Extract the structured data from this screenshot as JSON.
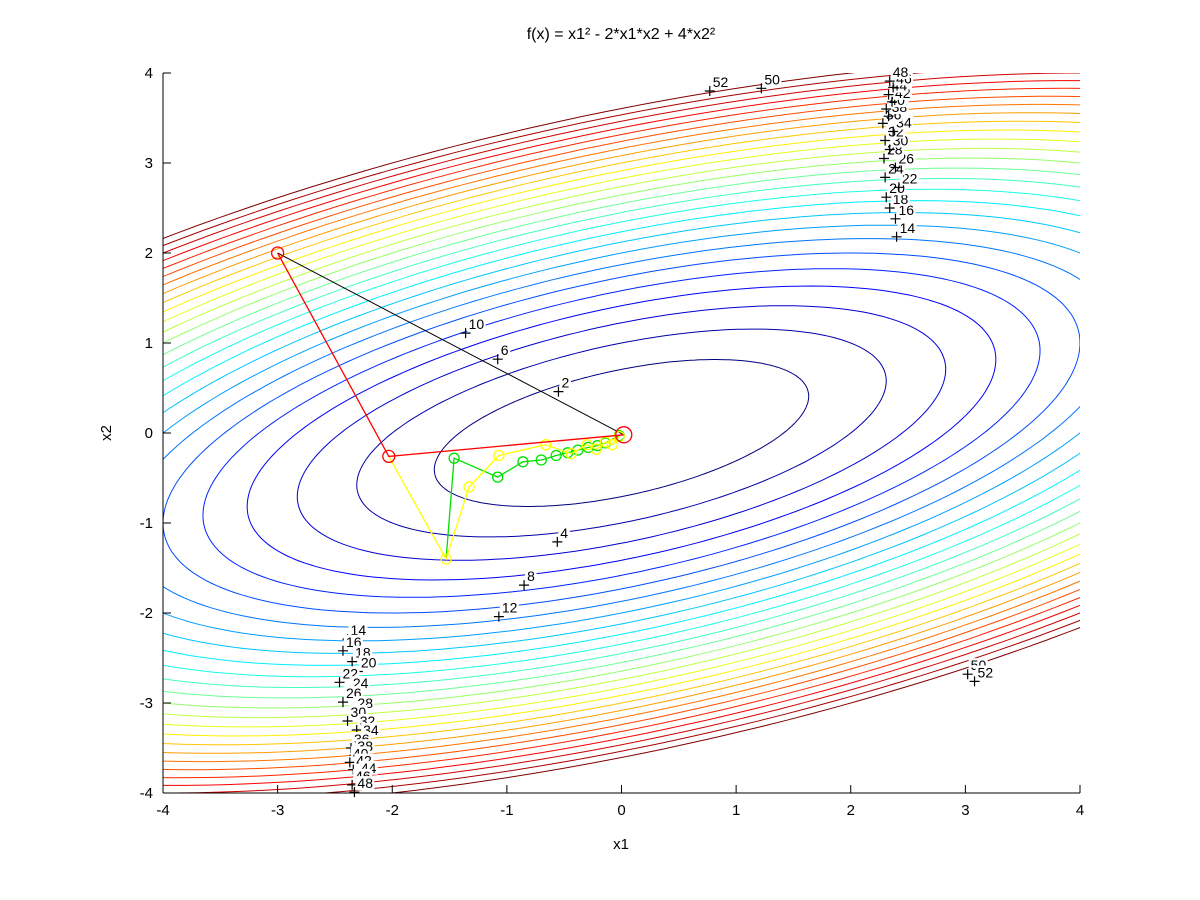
{
  "figure": {
    "title": "f(x) = x1² - 2*x1*x2 + 4*x2²",
    "xlabel": "x1",
    "ylabel": "x2",
    "background": "#ffffff"
  },
  "chart_data": {
    "type": "contour",
    "title": "f(x) = x1² - 2*x1*x2 + 4*x2²",
    "function": "f(x) = x1^2 - 2*x1*x2 + 4*x2^2",
    "quadratic_coefficients": {
      "a11": 1,
      "a12": -1,
      "a22": 4
    },
    "colormap": "jet",
    "grid": false,
    "xlim": [
      -4,
      4
    ],
    "ylim": [
      -4,
      4
    ],
    "xticks": [
      -4,
      -3,
      -2,
      -1,
      0,
      1,
      2,
      3,
      4
    ],
    "yticks": [
      -4,
      -3,
      -2,
      -1,
      0,
      1,
      2,
      3,
      4
    ],
    "levels": [
      2,
      4,
      6,
      8,
      10,
      12,
      14,
      16,
      18,
      20,
      22,
      24,
      26,
      28,
      30,
      32,
      34,
      36,
      38,
      40,
      42,
      44,
      46,
      48,
      50,
      52
    ],
    "minimum": [
      0,
      0
    ],
    "start_point": [
      -3,
      2
    ],
    "contour_labels": [
      {
        "level": 52,
        "x": 0.77,
        "y": 3.8
      },
      {
        "level": 50,
        "x": 1.22,
        "y": 3.83
      },
      {
        "level": 10,
        "x": -1.36,
        "y": 1.11
      },
      {
        "level": 6,
        "x": -1.08,
        "y": 0.82
      },
      {
        "level": 2,
        "x": -0.55,
        "y": 0.46
      },
      {
        "level": 4,
        "x": -0.56,
        "y": -1.21
      },
      {
        "level": 8,
        "x": -0.85,
        "y": -1.69
      },
      {
        "level": 12,
        "x": -1.07,
        "y": -2.04
      },
      {
        "level": 50,
        "x": 3.02,
        "y": -2.68
      },
      {
        "level": 52,
        "x": 3.08,
        "y": -2.76
      },
      {
        "level": 14,
        "x": 2.4,
        "y": 2.18
      },
      {
        "level": 16,
        "x": 2.39,
        "y": 2.38
      },
      {
        "level": 18,
        "x": 2.34,
        "y": 2.5
      },
      {
        "level": 20,
        "x": 2.31,
        "y": 2.62
      },
      {
        "level": 22,
        "x": 2.42,
        "y": 2.73
      },
      {
        "level": 24,
        "x": 2.3,
        "y": 2.84
      },
      {
        "level": 26,
        "x": 2.39,
        "y": 2.95
      },
      {
        "level": 28,
        "x": 2.29,
        "y": 3.05
      },
      {
        "level": 30,
        "x": 2.34,
        "y": 3.15
      },
      {
        "level": 32,
        "x": 2.3,
        "y": 3.25
      },
      {
        "level": 34,
        "x": 2.37,
        "y": 3.35
      },
      {
        "level": 36,
        "x": 2.28,
        "y": 3.44
      },
      {
        "level": 38,
        "x": 2.33,
        "y": 3.52
      },
      {
        "level": 40,
        "x": 2.31,
        "y": 3.6
      },
      {
        "level": 42,
        "x": 2.36,
        "y": 3.68
      },
      {
        "level": 44,
        "x": 2.33,
        "y": 3.76
      },
      {
        "level": 46,
        "x": 2.37,
        "y": 3.84
      },
      {
        "level": 48,
        "x": 2.34,
        "y": 3.91
      },
      {
        "level": 14,
        "x": -2.39,
        "y": -2.29
      },
      {
        "level": 16,
        "x": -2.43,
        "y": -2.42
      },
      {
        "level": 18,
        "x": -2.35,
        "y": -2.54
      },
      {
        "level": 20,
        "x": -2.3,
        "y": -2.65
      },
      {
        "level": 22,
        "x": -2.46,
        "y": -2.77
      },
      {
        "level": 24,
        "x": -2.37,
        "y": -2.88
      },
      {
        "level": 26,
        "x": -2.43,
        "y": -2.99
      },
      {
        "level": 28,
        "x": -2.33,
        "y": -3.1
      },
      {
        "level": 30,
        "x": -2.39,
        "y": -3.2
      },
      {
        "level": 32,
        "x": -2.31,
        "y": -3.3
      },
      {
        "level": 34,
        "x": -2.28,
        "y": -3.4
      },
      {
        "level": 36,
        "x": -2.36,
        "y": -3.5
      },
      {
        "level": 38,
        "x": -2.33,
        "y": -3.58
      },
      {
        "level": 40,
        "x": -2.37,
        "y": -3.66
      },
      {
        "level": 42,
        "x": -2.34,
        "y": -3.74
      },
      {
        "level": 44,
        "x": -2.3,
        "y": -3.82
      },
      {
        "level": 46,
        "x": -2.35,
        "y": -3.91
      },
      {
        "level": 48,
        "x": -2.33,
        "y": -3.99
      }
    ],
    "paths": [
      {
        "name": "newton-step-line",
        "color": "#000000",
        "line_width": 1,
        "marker": false,
        "points": [
          [
            -3,
            2
          ],
          [
            0.02,
            -0.02
          ]
        ]
      },
      {
        "name": "green-descent-path",
        "color": "#00e000",
        "line_width": 1.3,
        "marker": true,
        "marker_skip_first": true,
        "points": [
          [
            -1.53,
            -1.4
          ],
          [
            -1.46,
            -0.28
          ],
          [
            -1.08,
            -0.49
          ],
          [
            -0.86,
            -0.32
          ],
          [
            -0.7,
            -0.3
          ],
          [
            -0.57,
            -0.25
          ],
          [
            -0.47,
            -0.22
          ],
          [
            -0.38,
            -0.19
          ],
          [
            -0.29,
            -0.16
          ],
          [
            -0.21,
            -0.14
          ],
          [
            -0.14,
            -0.11
          ],
          [
            -0.02,
            -0.03
          ]
        ]
      },
      {
        "name": "yellow-descent-path",
        "color": "#ffff00",
        "line_width": 1.3,
        "marker": true,
        "marker_skip_first": true,
        "points": [
          [
            -2.03,
            -0.26
          ],
          [
            -1.53,
            -1.4
          ],
          [
            -1.33,
            -0.6
          ],
          [
            -1.07,
            -0.25
          ],
          [
            -0.66,
            -0.13
          ],
          [
            -0.44,
            -0.23
          ],
          [
            -0.3,
            -0.13
          ],
          [
            -0.22,
            -0.18
          ],
          [
            -0.14,
            -0.1
          ],
          [
            -0.08,
            -0.13
          ],
          [
            -0.02,
            -0.04
          ]
        ]
      },
      {
        "name": "red-descent-path",
        "color": "#ff0000",
        "line_width": 1.3,
        "marker": true,
        "marker_skip_first": false,
        "marker_radii": [
          6,
          6,
          8
        ],
        "points": [
          [
            -3,
            2
          ],
          [
            -2.03,
            -0.26
          ],
          [
            0.02,
            -0.02
          ]
        ]
      }
    ]
  }
}
